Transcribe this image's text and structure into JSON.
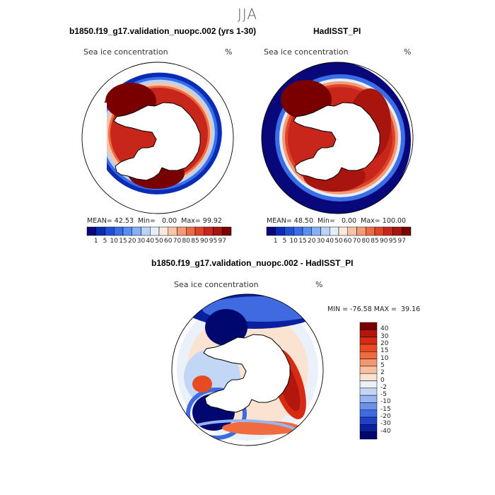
{
  "season": "JJA",
  "chart_data": [
    {
      "type": "heatmap",
      "title": "b1850.f19_g17.validation_nuopc.002 (yrs 1-30)",
      "variable": "Sea ice concentration",
      "units": "%",
      "projection": "south polar stereographic",
      "stats": {
        "mean": "42.53",
        "min": "0.00",
        "max": "99.92"
      },
      "colorbar_levels": [
        "1",
        "5",
        "10",
        "15",
        "20",
        "30",
        "40",
        "50",
        "60",
        "70",
        "80",
        "85",
        "90",
        "95",
        "97"
      ],
      "colorbar_colors": [
        "#08087a",
        "#0a2bb3",
        "#1f4fd8",
        "#3a6ee8",
        "#5a8ff0",
        "#85b0f5",
        "#b8d2f8",
        "#e4eef8",
        "#fbe8dc",
        "#f8c4a8",
        "#f49a78",
        "#ec6c48",
        "#e04428",
        "#c8261a",
        "#a8140e",
        "#7a0000"
      ]
    },
    {
      "type": "heatmap",
      "title": "HadISST_PI",
      "variable": "Sea ice concentration",
      "units": "%",
      "projection": "south polar stereographic",
      "stats": {
        "mean": "48.50",
        "min": "0.00",
        "max": "100.00"
      },
      "colorbar_levels": [
        "1",
        "5",
        "10",
        "15",
        "20",
        "30",
        "40",
        "50",
        "60",
        "70",
        "80",
        "85",
        "90",
        "95",
        "97"
      ]
    },
    {
      "type": "heatmap",
      "title": "b1850.f19_g17.validation_nuopc.002 - HadISST_PI",
      "variable": "Sea ice concentration",
      "units": "%",
      "projection": "south polar stereographic",
      "range_text": {
        "min": "-76.58",
        "max": "39.16"
      },
      "colorbar_levels": [
        "40",
        "30",
        "20",
        "15",
        "10",
        "5",
        "2",
        "0",
        "-2",
        "-5",
        "-10",
        "-15",
        "-20",
        "-30",
        "-40"
      ],
      "colorbar_colors": [
        "#7a0000",
        "#b3160c",
        "#d62a14",
        "#e84a22",
        "#f06c40",
        "#f49670",
        "#f8c0a0",
        "#fbe3d2",
        "#eaf1fb",
        "#c2d6f6",
        "#95b6f2",
        "#6a92ea",
        "#3f6ae0",
        "#1f42c8",
        "#0a20a0",
        "#000870"
      ]
    }
  ],
  "labels": {
    "mean_key": "MEAN=",
    "min_key": "Min=",
    "max_key": "Max=",
    "diff_min_key": "MIN =",
    "diff_max_key": "MAX ="
  }
}
